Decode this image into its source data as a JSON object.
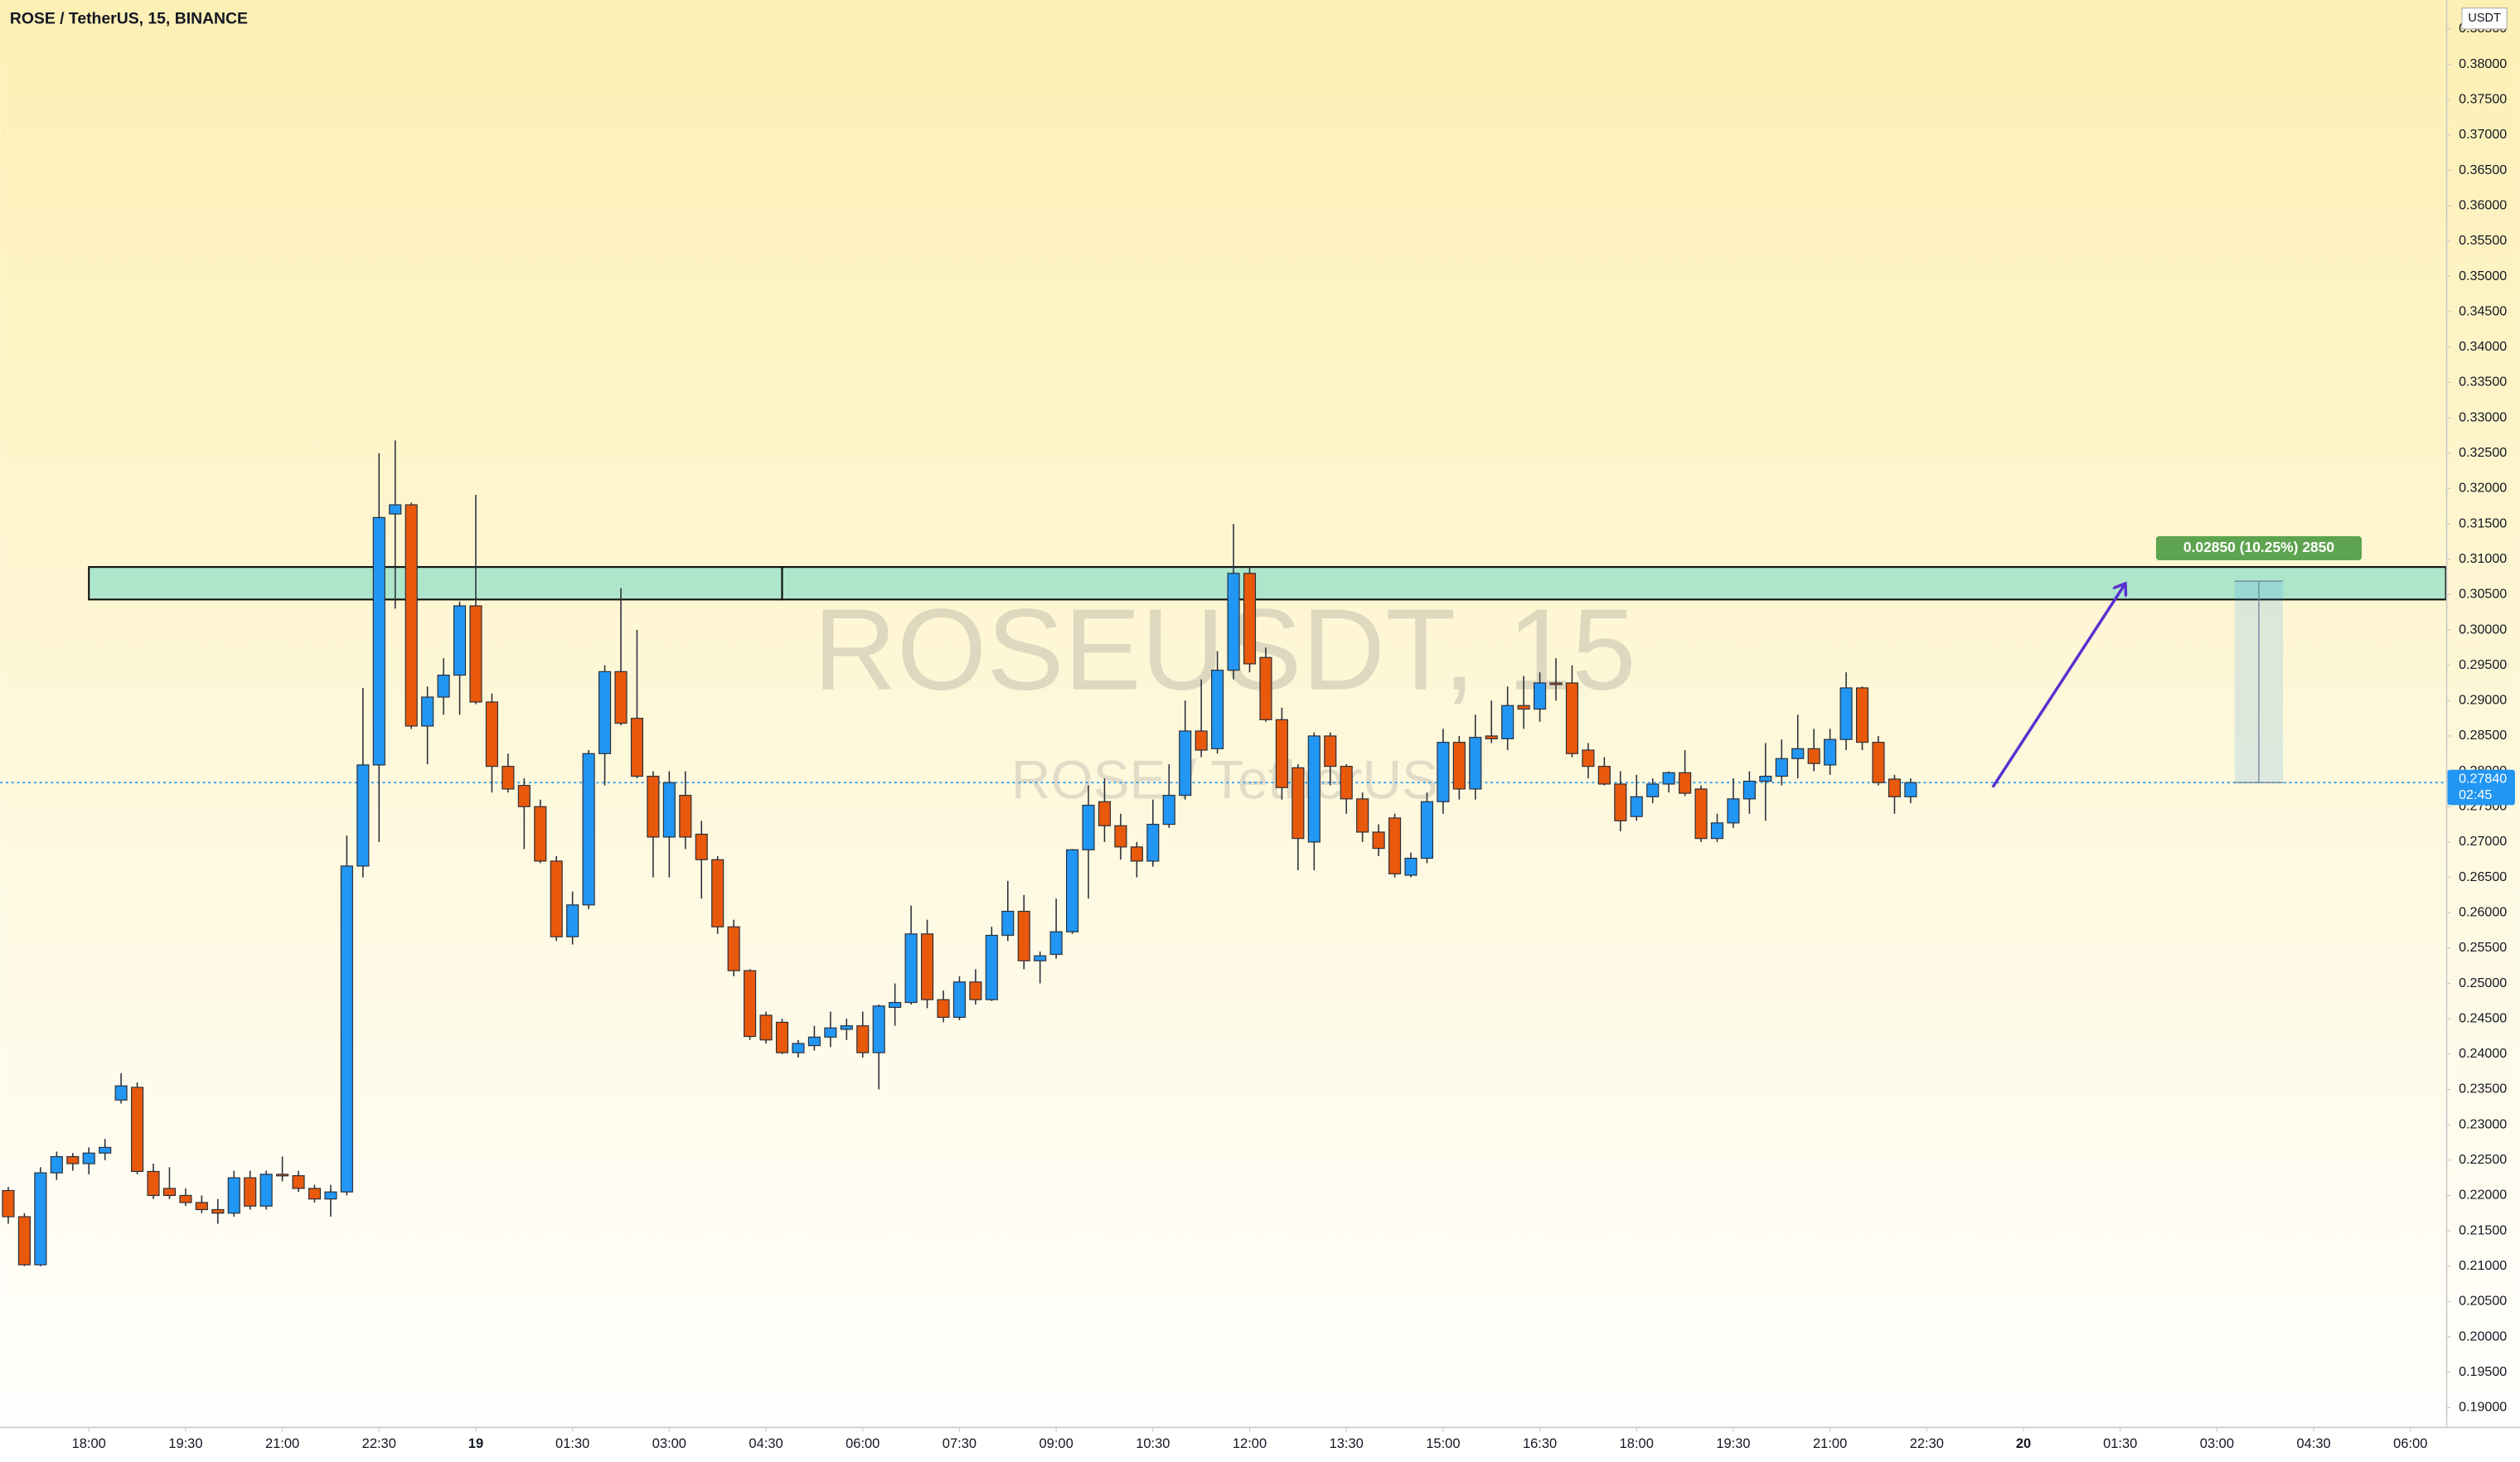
{
  "header": {
    "title": "ROSE / TetherUS, 15, BINANCE",
    "currency": "USDT"
  },
  "watermark": {
    "symbol": "ROSEUSDT, 15",
    "description": "ROSE / TetherUS"
  },
  "chart_data": {
    "type": "candlestick",
    "open": [
      0.2207,
      0.217,
      0.2102,
      0.2232,
      0.2255,
      0.2245,
      0.226,
      0.2335,
      0.2353,
      0.2234,
      0.221,
      0.22,
      0.219,
      0.218,
      0.2175,
      0.2225,
      0.2185,
      0.223,
      0.2228,
      0.221,
      0.2195,
      0.2205,
      0.2666,
      0.2809,
      0.3164,
      0.3177,
      0.2864,
      0.2905,
      0.2936,
      0.3034,
      0.2898,
      0.2807,
      0.278,
      0.275,
      0.2673,
      0.2566,
      0.2611,
      0.2825,
      0.2941,
      0.2875,
      0.2793,
      0.2707,
      0.2766,
      0.2711,
      0.2675,
      0.258,
      0.2518,
      0.2455,
      0.2445,
      0.2402,
      0.2412,
      0.2424,
      0.2435,
      0.244,
      0.2402,
      0.2466,
      0.2473,
      0.257,
      0.2477,
      0.2452,
      0.2502,
      0.2477,
      0.2568,
      0.2602,
      0.2532,
      0.2541,
      0.2573,
      0.2689,
      0.2757,
      0.2723,
      0.2693,
      0.2673,
      0.2725,
      0.2766,
      0.2857,
      0.2832,
      0.2943,
      0.308,
      0.2961,
      0.2873,
      0.2805,
      0.27,
      0.285,
      0.2807,
      0.2761,
      0.2714,
      0.2734,
      0.2653,
      0.2677,
      0.2757,
      0.2841,
      0.2775,
      0.285,
      0.2846,
      0.2893,
      0.2888,
      0.2925,
      0.2925,
      0.283,
      0.2807,
      0.2782,
      0.2736,
      0.2764,
      0.2782,
      0.2798,
      0.2775,
      0.2705,
      0.2727,
      0.2761,
      0.2786,
      0.2793,
      0.2818,
      0.2832,
      0.2809,
      0.2845,
      0.2918,
      0.2841,
      0.2789,
      0.2764
    ],
    "high": [
      0.2212,
      0.2175,
      0.224,
      0.2262,
      0.226,
      0.2268,
      0.228,
      0.2373,
      0.236,
      0.2245,
      0.224,
      0.221,
      0.22,
      0.2195,
      0.2235,
      0.2235,
      0.2235,
      0.2255,
      0.2235,
      0.2215,
      0.2215,
      0.2709,
      0.2918,
      0.325,
      0.3268,
      0.318,
      0.292,
      0.296,
      0.304,
      0.3191,
      0.291,
      0.2825,
      0.279,
      0.276,
      0.268,
      0.263,
      0.283,
      0.295,
      0.3059,
      0.3,
      0.28,
      0.28,
      0.28,
      0.273,
      0.268,
      0.259,
      0.252,
      0.246,
      0.245,
      0.242,
      0.244,
      0.246,
      0.245,
      0.246,
      0.247,
      0.25,
      0.261,
      0.259,
      0.249,
      0.251,
      0.252,
      0.258,
      0.2645,
      0.2625,
      0.2545,
      0.262,
      0.269,
      0.278,
      0.279,
      0.274,
      0.27,
      0.276,
      0.281,
      0.29,
      0.293,
      0.297,
      0.315,
      0.309,
      0.2975,
      0.289,
      0.281,
      0.2855,
      0.2855,
      0.281,
      0.277,
      0.2725,
      0.274,
      0.2685,
      0.277,
      0.286,
      0.285,
      0.288,
      0.29,
      0.292,
      0.2935,
      0.294,
      0.296,
      0.295,
      0.284,
      0.282,
      0.28,
      0.2795,
      0.279,
      0.28,
      0.283,
      0.278,
      0.274,
      0.279,
      0.28,
      0.284,
      0.2845,
      0.288,
      0.286,
      0.286,
      0.294,
      0.292,
      0.285,
      0.2795,
      0.279
    ],
    "low": [
      0.216,
      0.21,
      0.21,
      0.2222,
      0.2235,
      0.223,
      0.225,
      0.233,
      0.223,
      0.2195,
      0.2195,
      0.2185,
      0.2175,
      0.216,
      0.217,
      0.218,
      0.218,
      0.222,
      0.2205,
      0.219,
      0.217,
      0.22,
      0.265,
      0.27,
      0.303,
      0.286,
      0.281,
      0.288,
      0.288,
      0.2895,
      0.277,
      0.277,
      0.269,
      0.267,
      0.256,
      0.2555,
      0.2605,
      0.278,
      0.2865,
      0.279,
      0.265,
      0.265,
      0.269,
      0.262,
      0.257,
      0.251,
      0.242,
      0.2415,
      0.24,
      0.2395,
      0.2405,
      0.241,
      0.242,
      0.2395,
      0.235,
      0.244,
      0.247,
      0.2465,
      0.2445,
      0.2448,
      0.247,
      0.2475,
      0.256,
      0.252,
      0.25,
      0.2535,
      0.257,
      0.262,
      0.27,
      0.2675,
      0.265,
      0.2665,
      0.272,
      0.276,
      0.282,
      0.2825,
      0.293,
      0.294,
      0.287,
      0.276,
      0.266,
      0.266,
      0.278,
      0.274,
      0.27,
      0.268,
      0.265,
      0.265,
      0.267,
      0.274,
      0.276,
      0.276,
      0.284,
      0.283,
      0.286,
      0.287,
      0.29,
      0.282,
      0.279,
      0.278,
      0.2715,
      0.273,
      0.2755,
      0.277,
      0.2765,
      0.27,
      0.27,
      0.272,
      0.274,
      0.273,
      0.278,
      0.279,
      0.28,
      0.2795,
      0.283,
      0.283,
      0.278,
      0.274,
      0.2755
    ],
    "close": [
      0.217,
      0.2102,
      0.2232,
      0.2255,
      0.2245,
      0.226,
      0.2268,
      0.2355,
      0.2234,
      0.22,
      0.22,
      0.219,
      0.218,
      0.2175,
      0.2225,
      0.2185,
      0.223,
      0.2228,
      0.221,
      0.2195,
      0.2205,
      0.2666,
      0.2809,
      0.3159,
      0.3177,
      0.2864,
      0.2905,
      0.2936,
      0.3034,
      0.2898,
      0.2807,
      0.2775,
      0.275,
      0.2673,
      0.2566,
      0.2611,
      0.2825,
      0.2941,
      0.2868,
      0.2793,
      0.2707,
      0.2784,
      0.2707,
      0.2675,
      0.258,
      0.2518,
      0.2425,
      0.242,
      0.2402,
      0.2415,
      0.2424,
      0.2437,
      0.244,
      0.2402,
      0.2468,
      0.2473,
      0.257,
      0.2477,
      0.2452,
      0.2502,
      0.2477,
      0.2568,
      0.2602,
      0.2532,
      0.2539,
      0.2573,
      0.2689,
      0.2752,
      0.2723,
      0.2693,
      0.2673,
      0.2725,
      0.2766,
      0.2857,
      0.283,
      0.2943,
      0.308,
      0.2952,
      0.2873,
      0.2777,
      0.2705,
      0.285,
      0.2807,
      0.2761,
      0.2714,
      0.2691,
      0.2655,
      0.2677,
      0.2757,
      0.2841,
      0.2775,
      0.2848,
      0.2846,
      0.2893,
      0.2888,
      0.2925,
      0.2923,
      0.2825,
      0.2807,
      0.2782,
      0.273,
      0.2764,
      0.2782,
      0.2798,
      0.2769,
      0.2705,
      0.2727,
      0.2761,
      0.2786,
      0.2793,
      0.2818,
      0.2832,
      0.2811,
      0.2845,
      0.2918,
      0.2841,
      0.2784,
      0.2764,
      0.2784
    ],
    "colors": {
      "up": "#2196f3",
      "down": "#e8590c"
    },
    "xlim": [
      -0.5,
      151.2
    ],
    "xticks": [
      {
        "value": 5,
        "label": "18:00"
      },
      {
        "value": 11,
        "label": "19:30"
      },
      {
        "value": 17,
        "label": "21:00"
      },
      {
        "value": 23,
        "label": "22:30"
      },
      {
        "value": 29,
        "label": "19"
      },
      {
        "value": 35,
        "label": "01:30"
      },
      {
        "value": 41,
        "label": "03:00"
      },
      {
        "value": 47,
        "label": "04:30"
      },
      {
        "value": 53,
        "label": "06:00"
      },
      {
        "value": 59,
        "label": "07:30"
      },
      {
        "value": 65,
        "label": "09:00"
      },
      {
        "value": 71,
        "label": "10:30"
      },
      {
        "value": 77,
        "label": "12:00"
      },
      {
        "value": 83,
        "label": "13:30"
      },
      {
        "value": 89,
        "label": "15:00"
      },
      {
        "value": 95,
        "label": "16:30"
      },
      {
        "value": 101,
        "label": "18:00"
      },
      {
        "value": 107,
        "label": "19:30"
      },
      {
        "value": 113,
        "label": "21:00"
      },
      {
        "value": 119,
        "label": "22:30"
      },
      {
        "value": 125,
        "label": "20"
      },
      {
        "value": 131,
        "label": "01:30"
      },
      {
        "value": 137,
        "label": "03:00"
      },
      {
        "value": 143,
        "label": "04:30"
      },
      {
        "value": 149,
        "label": "06:00"
      }
    ],
    "ylim": [
      0.1873,
      0.3891
    ],
    "yticks": [
      {
        "value": 0.19,
        "label": "0.19000"
      },
      {
        "value": 0.195,
        "label": "0.19500"
      },
      {
        "value": 0.2,
        "label": "0.20000"
      },
      {
        "value": 0.205,
        "label": "0.20500"
      },
      {
        "value": 0.21,
        "label": "0.21000"
      },
      {
        "value": 0.215,
        "label": "0.21500"
      },
      {
        "value": 0.22,
        "label": "0.22000"
      },
      {
        "value": 0.225,
        "label": "0.22500"
      },
      {
        "value": 0.23,
        "label": "0.23000"
      },
      {
        "value": 0.235,
        "label": "0.23500"
      },
      {
        "value": 0.24,
        "label": "0.24000"
      },
      {
        "value": 0.245,
        "label": "0.24500"
      },
      {
        "value": 0.25,
        "label": "0.25000"
      },
      {
        "value": 0.255,
        "label": "0.25500"
      },
      {
        "value": 0.26,
        "label": "0.26000"
      },
      {
        "value": 0.265,
        "label": "0.26500"
      },
      {
        "value": 0.27,
        "label": "0.27000"
      },
      {
        "value": 0.275,
        "label": "0.27500"
      },
      {
        "value": 0.28,
        "label": "0.28000"
      },
      {
        "value": 0.285,
        "label": "0.28500"
      },
      {
        "value": 0.29,
        "label": "0.29000"
      },
      {
        "value": 0.295,
        "label": "0.29500"
      },
      {
        "value": 0.3,
        "label": "0.30000"
      },
      {
        "value": 0.305,
        "label": "0.30500"
      },
      {
        "value": 0.31,
        "label": "0.31000"
      },
      {
        "value": 0.315,
        "label": "0.31500"
      },
      {
        "value": 0.32,
        "label": "0.32000"
      },
      {
        "value": 0.325,
        "label": "0.32500"
      },
      {
        "value": 0.33,
        "label": "0.33000"
      },
      {
        "value": 0.335,
        "label": "0.33500"
      },
      {
        "value": 0.34,
        "label": "0.34000"
      },
      {
        "value": 0.345,
        "label": "0.34500"
      },
      {
        "value": 0.35,
        "label": "0.35000"
      },
      {
        "value": 0.355,
        "label": "0.35500"
      },
      {
        "value": 0.36,
        "label": "0.36000"
      },
      {
        "value": 0.365,
        "label": "0.36500"
      },
      {
        "value": 0.37,
        "label": "0.37000"
      },
      {
        "value": 0.375,
        "label": "0.37500"
      },
      {
        "value": 0.38,
        "label": "0.38000"
      },
      {
        "value": 0.385,
        "label": "0.38500"
      }
    ],
    "grid": false,
    "last_price": {
      "value": 0.2784,
      "label": "0.27840",
      "countdown": "02:45"
    },
    "zones": [
      {
        "top": 0.3089,
        "bottom": 0.3043,
        "start": 5,
        "end": 48
      },
      {
        "top": 0.3089,
        "bottom": 0.3043,
        "start": 48,
        "end": 151.2
      }
    ],
    "measure": {
      "from": 0.2784,
      "to": 0.3069,
      "start": 138.1,
      "end": 141.1,
      "label": "0.02850 (10.25%) 2850"
    }
  }
}
